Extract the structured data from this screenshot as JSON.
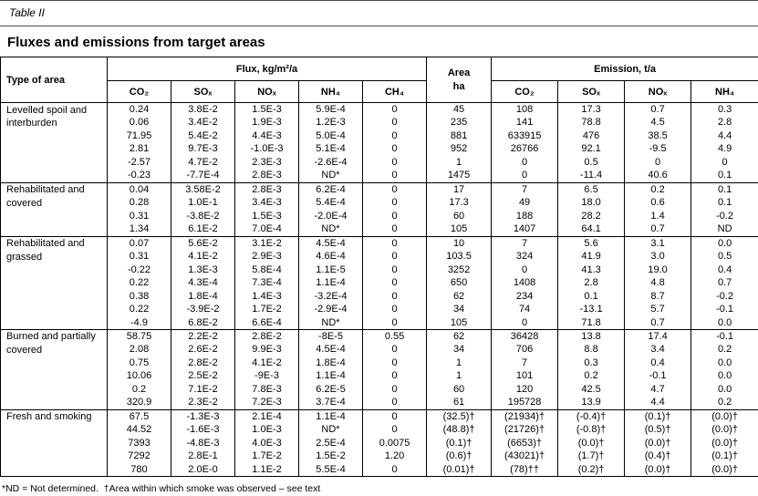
{
  "page": {
    "caption": "Table II",
    "title": "Fluxes and emissions from target areas",
    "footnote": "*ND = Not determined.  †Area within which smoke was observed – see text"
  },
  "table": {
    "col_headers": {
      "type_of_area": "Type of area",
      "flux_group": "Flux, kg/m²/a",
      "area_line1": "Area",
      "area_line2": "ha",
      "emission_group": "Emission, t/a",
      "flux_cols": [
        "CO₂",
        "SOₓ",
        "NOₓ",
        "NH₄",
        "CH₄"
      ],
      "emission_cols": [
        "CO₂",
        "SOₓ",
        "NOₓ",
        "NH₄"
      ]
    },
    "groups": [
      {
        "area_type": "Levelled spoil and interburden",
        "rows": [
          [
            "0.24",
            "3.8E-2",
            "1.5E-3",
            "5.9E-4",
            "0",
            "45",
            "108",
            "17.3",
            "0.7",
            "0.3"
          ],
          [
            "0.06",
            "3.4E-2",
            "1.9E-3",
            "1.2E-3",
            "0",
            "235",
            "141",
            "78.8",
            "4.5",
            "2.8"
          ],
          [
            "71.95",
            "5.4E-2",
            "4.4E-3",
            "5.0E-4",
            "0",
            "881",
            "633915",
            "476",
            "38.5",
            "4.4"
          ],
          [
            "2.81",
            "9.7E-3",
            "-1.0E-3",
            "5.1E-4",
            "0",
            "952",
            "26766",
            "92.1",
            "-9.5",
            "4.9"
          ],
          [
            "-2.57",
            "4.7E-2",
            "2.3E-3",
            "-2.6E-4",
            "0",
            "1",
            "0",
            "0.5",
            "0",
            "0"
          ],
          [
            "-0.23",
            "-7.7E-4",
            "2.8E-3",
            "ND*",
            "0",
            "1475",
            "0",
            "-11.4",
            "40.6",
            "0.1"
          ]
        ]
      },
      {
        "area_type": "Rehabilitated and covered",
        "rows": [
          [
            "0.04",
            "3.58E-2",
            "2.8E-3",
            "6.2E-4",
            "0",
            "17",
            "7",
            "6.5",
            "0.2",
            "0.1"
          ],
          [
            "0.28",
            "1.0E-1",
            "3.4E-3",
            "5.4E-4",
            "0",
            "17.3",
            "49",
            "18.0",
            "0.6",
            "0.1"
          ],
          [
            "0.31",
            "-3.8E-2",
            "1.5E-3",
            "-2.0E-4",
            "0",
            "60",
            "188",
            "28.2",
            "1.4",
            "-0.2"
          ],
          [
            "1.34",
            "6.1E-2",
            "7.0E-4",
            "ND*",
            "0",
            "105",
            "1407",
            "64.1",
            "0.7",
            "ND"
          ]
        ]
      },
      {
        "area_type": "Rehabilitated and grassed",
        "rows": [
          [
            "0.07",
            "5.6E-2",
            "3.1E-2",
            "4.5E-4",
            "0",
            "10",
            "7",
            "5.6",
            "3.1",
            "0.0"
          ],
          [
            "0.31",
            "4.1E-2",
            "2.9E-3",
            "4.6E-4",
            "0",
            "103.5",
            "324",
            "41.9",
            "3.0",
            "0.5"
          ],
          [
            "-0.22",
            "1.3E-3",
            "5.8E-4",
            "1.1E-5",
            "0",
            "3252",
            "0",
            "41.3",
            "19.0",
            "0.4"
          ],
          [
            "0.22",
            "4.3E-4",
            "7.3E-4",
            "1.1E-4",
            "0",
            "650",
            "1408",
            "2.8",
            "4.8",
            "0.7"
          ],
          [
            "0.38",
            "1.8E-4",
            "1.4E-3",
            "-3.2E-4",
            "0",
            "62",
            "234",
            "0.1",
            "8.7",
            "-0.2"
          ],
          [
            "0.22",
            "-3.9E-2",
            "1.7E-2",
            "-2.9E-4",
            "0",
            "34",
            "74",
            "-13.1",
            "5.7",
            "-0.1"
          ],
          [
            "-4.9",
            "6.8E-2",
            "6.6E-4",
            "ND*",
            "0",
            "105",
            "0",
            "71.8",
            "0.7",
            "0.0"
          ]
        ]
      },
      {
        "area_type": "Burned and partially covered",
        "rows": [
          [
            "58.75",
            "2.2E-2",
            "2.8E-2",
            "-8E-5",
            "0.55",
            "62",
            "36428",
            "13.8",
            "17.4",
            "-0.1"
          ],
          [
            "2.08",
            "2.6E-2",
            "9.9E-3",
            "4.5E-4",
            "0",
            "34",
            "706",
            "8.8",
            "3.4",
            "0.2"
          ],
          [
            "0.75",
            "2.8E-2",
            "4.1E-2",
            "1.8E-4",
            "0",
            "1",
            "7",
            "0.3",
            "0.4",
            "0.0"
          ],
          [
            "10.06",
            "2.5E-2",
            "-9E-3",
            "1.1E-4",
            "0",
            "1",
            "101",
            "0.2",
            "-0.1",
            "0.0"
          ],
          [
            "0.2",
            "7.1E-2",
            "7.8E-3",
            "6.2E-5",
            "0",
            "60",
            "120",
            "42.5",
            "4.7",
            "0.0"
          ],
          [
            "320.9",
            "2.3E-2",
            "7.2E-3",
            "3.7E-4",
            "0",
            "61",
            "195728",
            "13.9",
            "4.4",
            "0.2"
          ]
        ]
      },
      {
        "area_type": "Fresh and smoking",
        "rows": [
          [
            "67.5",
            "-1.3E-3",
            "2.1E-4",
            "1.1E-4",
            "0",
            "(32.5)†",
            "(21934)†",
            "(-0.4)†",
            "(0.1)†",
            "(0.0)†"
          ],
          [
            "44.52",
            "-1.6E-3",
            "1.0E-3",
            "ND*",
            "0",
            "(48.8)†",
            "(21726)†",
            "(-0.8)†",
            "(0.5)†",
            "(0.0)†"
          ],
          [
            "7393",
            "-4.8E-3",
            "4.0E-3",
            "2.5E-4",
            "0.0075",
            "(0.1)†",
            "(6653)†",
            "(0.0)†",
            "(0.0)†",
            "(0.0)†"
          ],
          [
            "7292",
            "2.8E-1",
            "1.7E-2",
            "1.5E-2",
            "1.20",
            "(0.6)†",
            "(43021)†",
            "(1.7)†",
            "(0.4)†",
            "(0.1)†"
          ],
          [
            "780",
            "2.0E-0",
            "1.1E-2",
            "5.5E-4",
            "0",
            "(0.01)†",
            "(78)††",
            "(0.2)†",
            "(0.0)†",
            "(0.0)†"
          ]
        ]
      }
    ]
  }
}
